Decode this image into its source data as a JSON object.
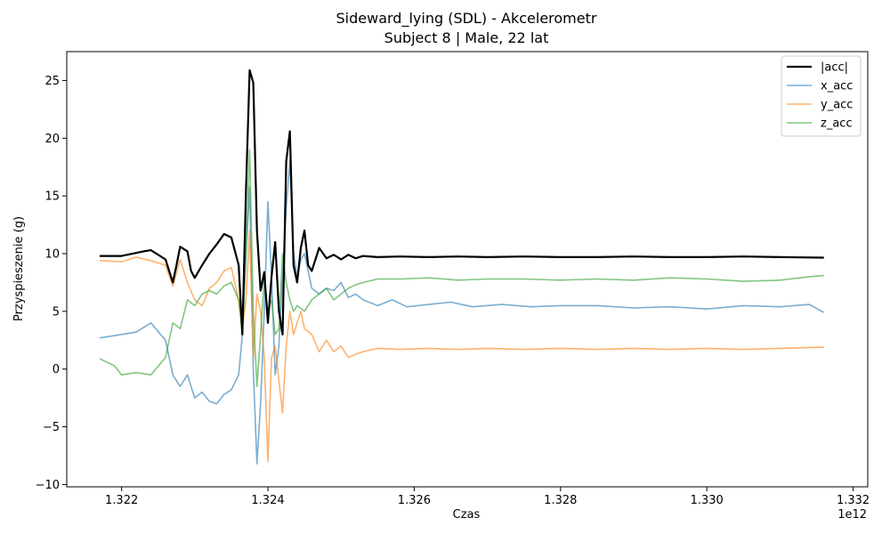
{
  "chart_data": {
    "type": "line",
    "title": "Sideward_lying (SDL) - Akcelerometr",
    "subtitle": "Subject 8 | Male, 22 lat",
    "xlabel": "Czas",
    "ylabel": "Przyspieszenie (g)",
    "x_offset_label": "1e12",
    "xlim": [
      1.32125,
      1.3322
    ],
    "ylim": [
      -10.2,
      27.5
    ],
    "xticks": [
      1.322,
      1.324,
      1.326,
      1.328,
      1.33,
      1.332
    ],
    "xtick_labels": [
      "1.322",
      "1.324",
      "1.326",
      "1.328",
      "1.330",
      "1.332"
    ],
    "yticks": [
      -10,
      -5,
      0,
      5,
      10,
      15,
      20,
      25
    ],
    "ytick_labels": [
      "−10",
      "−5",
      "0",
      "5",
      "10",
      "15",
      "20",
      "25"
    ],
    "grid": false,
    "legend_position": "top-right",
    "series": [
      {
        "name": "|acc|",
        "color": "#000000",
        "stroke_width": 2.2,
        "opacity": 1,
        "points": [
          [
            1.3217,
            9.8
          ],
          [
            1.322,
            9.8
          ],
          [
            1.3223,
            10.2
          ],
          [
            1.3224,
            10.3
          ],
          [
            1.3226,
            9.5
          ],
          [
            1.3227,
            7.5
          ],
          [
            1.32275,
            9
          ],
          [
            1.3228,
            10.6
          ],
          [
            1.3229,
            10.2
          ],
          [
            1.32295,
            8.5
          ],
          [
            1.323,
            7.9
          ],
          [
            1.3231,
            9.0
          ],
          [
            1.3232,
            10.0
          ],
          [
            1.3233,
            10.8
          ],
          [
            1.3234,
            11.7
          ],
          [
            1.3235,
            11.4
          ],
          [
            1.3236,
            9.0
          ],
          [
            1.32365,
            3.0
          ],
          [
            1.3237,
            15.5
          ],
          [
            1.32375,
            25.9
          ],
          [
            1.3238,
            24.8
          ],
          [
            1.32385,
            12.0
          ],
          [
            1.3239,
            6.8
          ],
          [
            1.32395,
            8.4
          ],
          [
            1.324,
            4.0
          ],
          [
            1.32405,
            8.0
          ],
          [
            1.3241,
            11.0
          ],
          [
            1.32415,
            5.0
          ],
          [
            1.3242,
            3.0
          ],
          [
            1.32425,
            18.0
          ],
          [
            1.3243,
            20.6
          ],
          [
            1.32435,
            9.0
          ],
          [
            1.3244,
            7.5
          ],
          [
            1.32445,
            10.5
          ],
          [
            1.3245,
            12.0
          ],
          [
            1.32455,
            9.0
          ],
          [
            1.3246,
            8.5
          ],
          [
            1.3247,
            10.5
          ],
          [
            1.3248,
            9.6
          ],
          [
            1.3249,
            9.9
          ],
          [
            1.325,
            9.5
          ],
          [
            1.3251,
            9.9
          ],
          [
            1.3252,
            9.6
          ],
          [
            1.3253,
            9.8
          ],
          [
            1.3255,
            9.7
          ],
          [
            1.3258,
            9.75
          ],
          [
            1.3262,
            9.7
          ],
          [
            1.3266,
            9.75
          ],
          [
            1.327,
            9.7
          ],
          [
            1.3275,
            9.75
          ],
          [
            1.328,
            9.7
          ],
          [
            1.3285,
            9.7
          ],
          [
            1.329,
            9.75
          ],
          [
            1.3295,
            9.7
          ],
          [
            1.33,
            9.7
          ],
          [
            1.3305,
            9.75
          ],
          [
            1.331,
            9.7
          ],
          [
            1.3316,
            9.65
          ]
        ]
      },
      {
        "name": "x_acc",
        "color": "#1f77b4",
        "stroke_width": 1.6,
        "opacity": 0.6,
        "points": [
          [
            1.3217,
            2.7
          ],
          [
            1.322,
            3.0
          ],
          [
            1.3222,
            3.2
          ],
          [
            1.3224,
            4.0
          ],
          [
            1.3226,
            2.5
          ],
          [
            1.32265,
            1.0
          ],
          [
            1.3227,
            -0.5
          ],
          [
            1.3228,
            -1.5
          ],
          [
            1.3229,
            -0.5
          ],
          [
            1.323,
            -2.5
          ],
          [
            1.3231,
            -2.0
          ],
          [
            1.3232,
            -2.8
          ],
          [
            1.3233,
            -3.0
          ],
          [
            1.3234,
            -2.2
          ],
          [
            1.3235,
            -1.8
          ],
          [
            1.3236,
            -0.5
          ],
          [
            1.32365,
            3.0
          ],
          [
            1.3237,
            10.0
          ],
          [
            1.32375,
            15.8
          ],
          [
            1.3238,
            0.0
          ],
          [
            1.32385,
            -8.2
          ],
          [
            1.3239,
            -3.0
          ],
          [
            1.32395,
            5.0
          ],
          [
            1.324,
            14.5
          ],
          [
            1.32405,
            8.0
          ],
          [
            1.3241,
            -0.5
          ],
          [
            1.32415,
            2.0
          ],
          [
            1.3242,
            8.0
          ],
          [
            1.32425,
            14.0
          ],
          [
            1.3243,
            18.0
          ],
          [
            1.32435,
            10.0
          ],
          [
            1.3244,
            8.0
          ],
          [
            1.32445,
            9.5
          ],
          [
            1.3245,
            10.0
          ],
          [
            1.3246,
            7.0
          ],
          [
            1.3247,
            6.5
          ],
          [
            1.3248,
            7.0
          ],
          [
            1.3249,
            6.8
          ],
          [
            1.325,
            7.5
          ],
          [
            1.3251,
            6.2
          ],
          [
            1.3252,
            6.5
          ],
          [
            1.3253,
            6.0
          ],
          [
            1.3255,
            5.5
          ],
          [
            1.3257,
            6.0
          ],
          [
            1.3259,
            5.4
          ],
          [
            1.3262,
            5.6
          ],
          [
            1.3265,
            5.8
          ],
          [
            1.3268,
            5.4
          ],
          [
            1.3272,
            5.6
          ],
          [
            1.3276,
            5.4
          ],
          [
            1.328,
            5.5
          ],
          [
            1.3285,
            5.5
          ],
          [
            1.329,
            5.3
          ],
          [
            1.3295,
            5.4
          ],
          [
            1.33,
            5.2
          ],
          [
            1.3305,
            5.5
          ],
          [
            1.331,
            5.4
          ],
          [
            1.3314,
            5.6
          ],
          [
            1.3316,
            4.9
          ]
        ]
      },
      {
        "name": "y_acc",
        "color": "#ff7f0e",
        "stroke_width": 1.6,
        "opacity": 0.6,
        "points": [
          [
            1.3217,
            9.4
          ],
          [
            1.322,
            9.3
          ],
          [
            1.3222,
            9.7
          ],
          [
            1.3224,
            9.4
          ],
          [
            1.3226,
            9.0
          ],
          [
            1.3227,
            7.2
          ],
          [
            1.3228,
            9.5
          ],
          [
            1.3229,
            7.5
          ],
          [
            1.323,
            6.0
          ],
          [
            1.3231,
            5.5
          ],
          [
            1.3232,
            7.0
          ],
          [
            1.3233,
            7.5
          ],
          [
            1.3234,
            8.5
          ],
          [
            1.3235,
            8.8
          ],
          [
            1.3236,
            6.0
          ],
          [
            1.32365,
            3.5
          ],
          [
            1.3237,
            6.0
          ],
          [
            1.32375,
            12.0
          ],
          [
            1.3238,
            1.0
          ],
          [
            1.32385,
            6.5
          ],
          [
            1.3239,
            5.0
          ],
          [
            1.32395,
            1.0
          ],
          [
            1.324,
            -8.0
          ],
          [
            1.32405,
            1.0
          ],
          [
            1.3241,
            2.0
          ],
          [
            1.32415,
            -1.0
          ],
          [
            1.3242,
            -3.8
          ],
          [
            1.32425,
            2.0
          ],
          [
            1.3243,
            5.0
          ],
          [
            1.32435,
            3.0
          ],
          [
            1.3244,
            4.0
          ],
          [
            1.32445,
            5.0
          ],
          [
            1.3245,
            3.5
          ],
          [
            1.3246,
            3.0
          ],
          [
            1.3247,
            1.5
          ],
          [
            1.3248,
            2.5
          ],
          [
            1.3249,
            1.5
          ],
          [
            1.325,
            2.0
          ],
          [
            1.3251,
            1.0
          ],
          [
            1.3252,
            1.3
          ],
          [
            1.3253,
            1.5
          ],
          [
            1.3255,
            1.8
          ],
          [
            1.3258,
            1.7
          ],
          [
            1.3262,
            1.8
          ],
          [
            1.3266,
            1.7
          ],
          [
            1.327,
            1.8
          ],
          [
            1.3275,
            1.7
          ],
          [
            1.328,
            1.8
          ],
          [
            1.3285,
            1.7
          ],
          [
            1.329,
            1.8
          ],
          [
            1.3295,
            1.7
          ],
          [
            1.33,
            1.8
          ],
          [
            1.3305,
            1.7
          ],
          [
            1.331,
            1.8
          ],
          [
            1.3316,
            1.9
          ]
        ]
      },
      {
        "name": "z_acc",
        "color": "#2ca02c",
        "stroke_width": 1.6,
        "opacity": 0.6,
        "points": [
          [
            1.3217,
            0.9
          ],
          [
            1.3219,
            0.3
          ],
          [
            1.322,
            -0.5
          ],
          [
            1.3222,
            -0.3
          ],
          [
            1.3224,
            -0.5
          ],
          [
            1.3226,
            1.0
          ],
          [
            1.3227,
            4.0
          ],
          [
            1.3228,
            3.5
          ],
          [
            1.3229,
            6.0
          ],
          [
            1.323,
            5.5
          ],
          [
            1.3231,
            6.5
          ],
          [
            1.3232,
            6.8
          ],
          [
            1.3233,
            6.5
          ],
          [
            1.3234,
            7.2
          ],
          [
            1.3235,
            7.5
          ],
          [
            1.3236,
            6.0
          ],
          [
            1.32365,
            3.0
          ],
          [
            1.3237,
            10.0
          ],
          [
            1.32375,
            19.0
          ],
          [
            1.3238,
            5.0
          ],
          [
            1.32385,
            -1.5
          ],
          [
            1.3239,
            3.0
          ],
          [
            1.32395,
            8.0
          ],
          [
            1.324,
            5.0
          ],
          [
            1.32405,
            6.0
          ],
          [
            1.3241,
            3.0
          ],
          [
            1.32415,
            3.5
          ],
          [
            1.3242,
            10.0
          ],
          [
            1.32425,
            7.5
          ],
          [
            1.3243,
            6.0
          ],
          [
            1.32435,
            5.0
          ],
          [
            1.3244,
            5.5
          ],
          [
            1.3245,
            5.0
          ],
          [
            1.3246,
            6.0
          ],
          [
            1.3247,
            6.5
          ],
          [
            1.3248,
            7.0
          ],
          [
            1.3249,
            6.0
          ],
          [
            1.325,
            6.5
          ],
          [
            1.3251,
            7.0
          ],
          [
            1.3252,
            7.3
          ],
          [
            1.3253,
            7.5
          ],
          [
            1.3255,
            7.8
          ],
          [
            1.3258,
            7.8
          ],
          [
            1.3262,
            7.9
          ],
          [
            1.3266,
            7.7
          ],
          [
            1.327,
            7.8
          ],
          [
            1.3275,
            7.8
          ],
          [
            1.328,
            7.7
          ],
          [
            1.3285,
            7.8
          ],
          [
            1.329,
            7.7
          ],
          [
            1.3295,
            7.9
          ],
          [
            1.33,
            7.8
          ],
          [
            1.3305,
            7.6
          ],
          [
            1.331,
            7.7
          ],
          [
            1.3314,
            8.0
          ],
          [
            1.3316,
            8.1
          ]
        ]
      }
    ]
  }
}
